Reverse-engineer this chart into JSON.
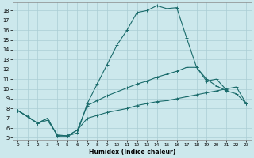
{
  "xlabel": "Humidex (Indice chaleur)",
  "background_color": "#cce8ec",
  "grid_color": "#aacdd4",
  "line_color": "#1a6b6b",
  "xlim": [
    -0.5,
    23.5
  ],
  "ylim": [
    4.8,
    18.8
  ],
  "x_ticks": [
    0,
    1,
    2,
    3,
    4,
    5,
    6,
    7,
    8,
    9,
    10,
    11,
    12,
    13,
    14,
    15,
    16,
    17,
    18,
    19,
    20,
    21,
    22,
    23
  ],
  "y_ticks": [
    5,
    6,
    7,
    8,
    9,
    10,
    11,
    12,
    13,
    14,
    15,
    16,
    17,
    18
  ],
  "curve1_x": [
    0,
    1,
    2,
    3,
    4,
    5,
    6,
    7,
    8,
    9,
    10,
    11,
    12,
    13,
    14,
    15,
    16,
    17,
    18,
    19,
    20,
    21
  ],
  "curve1_y": [
    7.8,
    7.2,
    6.5,
    6.8,
    5.3,
    5.2,
    5.5,
    8.5,
    10.5,
    12.5,
    14.5,
    16.0,
    17.8,
    18.0,
    18.5,
    18.2,
    18.3,
    15.2,
    12.2,
    10.8,
    11.0,
    9.9
  ],
  "curve2_x": [
    0,
    2,
    3,
    4,
    5,
    6,
    7,
    8,
    9,
    10,
    11,
    12,
    13,
    14,
    15,
    16,
    17,
    18,
    19,
    20,
    21,
    22,
    23
  ],
  "curve2_y": [
    7.8,
    6.5,
    7.0,
    5.2,
    5.2,
    5.8,
    8.3,
    8.8,
    9.3,
    9.7,
    10.1,
    10.5,
    10.8,
    11.2,
    11.5,
    11.8,
    12.2,
    12.2,
    11.0,
    10.3,
    9.8,
    9.5,
    8.5
  ],
  "curve3_x": [
    0,
    2,
    3,
    4,
    5,
    6,
    7,
    8,
    9,
    10,
    11,
    12,
    13,
    14,
    15,
    16,
    17,
    18,
    19,
    20,
    21,
    22,
    23
  ],
  "curve3_y": [
    7.8,
    6.5,
    7.0,
    5.2,
    5.2,
    5.8,
    7.0,
    7.3,
    7.6,
    7.8,
    8.0,
    8.3,
    8.5,
    8.7,
    8.8,
    9.0,
    9.2,
    9.4,
    9.6,
    9.8,
    10.0,
    10.2,
    8.5
  ]
}
